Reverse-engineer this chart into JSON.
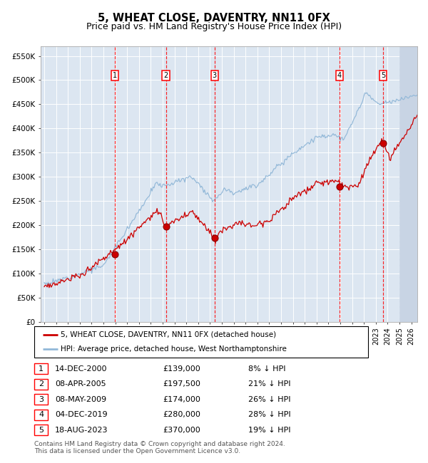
{
  "title": "5, WHEAT CLOSE, DAVENTRY, NN11 0FX",
  "subtitle": "Price paid vs. HM Land Registry's House Price Index (HPI)",
  "ylim": [
    0,
    570000
  ],
  "yticks": [
    0,
    50000,
    100000,
    150000,
    200000,
    250000,
    300000,
    350000,
    400000,
    450000,
    500000,
    550000
  ],
  "ytick_labels": [
    "£0",
    "£50K",
    "£100K",
    "£150K",
    "£200K",
    "£250K",
    "£300K",
    "£350K",
    "£400K",
    "£450K",
    "£500K",
    "£550K"
  ],
  "xlim_start": 1994.7,
  "xlim_end": 2026.5,
  "hpi_color": "#92b8d8",
  "price_color": "#cc0000",
  "bg_color": "#dce6f1",
  "sale_dates": [
    2000.95,
    2005.27,
    2009.37,
    2019.92,
    2023.62
  ],
  "sale_prices": [
    139000,
    197500,
    174000,
    280000,
    370000
  ],
  "sale_labels": [
    "1",
    "2",
    "3",
    "4",
    "5"
  ],
  "legend_label_price": "5, WHEAT CLOSE, DAVENTRY, NN11 0FX (detached house)",
  "legend_label_hpi": "HPI: Average price, detached house, West Northamptonshire",
  "table_rows": [
    [
      "1",
      "14-DEC-2000",
      "£139,000",
      "8% ↓ HPI"
    ],
    [
      "2",
      "08-APR-2005",
      "£197,500",
      "21% ↓ HPI"
    ],
    [
      "3",
      "08-MAY-2009",
      "£174,000",
      "26% ↓ HPI"
    ],
    [
      "4",
      "04-DEC-2019",
      "£280,000",
      "28% ↓ HPI"
    ],
    [
      "5",
      "18-AUG-2023",
      "£370,000",
      "19% ↓ HPI"
    ]
  ],
  "footer": "Contains HM Land Registry data © Crown copyright and database right 2024.\nThis data is licensed under the Open Government Licence v3.0.",
  "title_fontsize": 10.5,
  "subtitle_fontsize": 9,
  "axis_fontsize": 7.5
}
